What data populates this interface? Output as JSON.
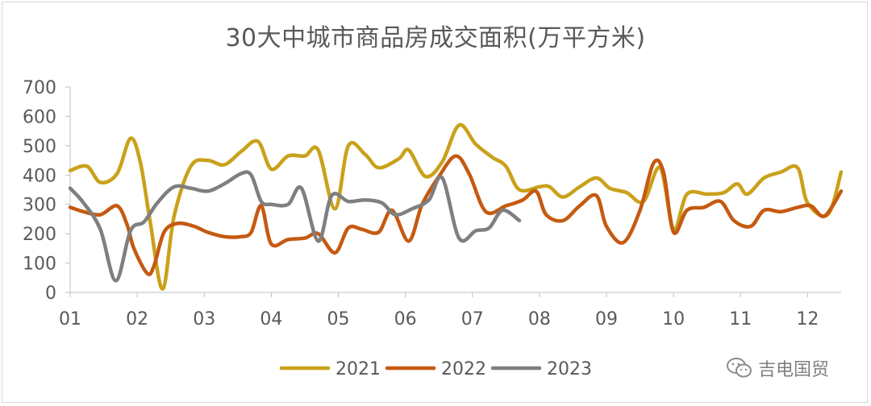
{
  "title": "30大中城市商品房成交面积(万平方米)",
  "watermark": "吉电国贸",
  "chart_data": {
    "type": "line",
    "title": "30大中城市商品房成交面积(万平方米)",
    "x_ticks": [
      "01",
      "02",
      "03",
      "04",
      "05",
      "06",
      "07",
      "08",
      "09",
      "10",
      "11",
      "12"
    ],
    "y_ticks": [
      0,
      100,
      200,
      300,
      400,
      500,
      600,
      700
    ],
    "xlim": [
      1,
      12.5
    ],
    "ylim": [
      0,
      700
    ],
    "grid": false,
    "legend_position": "bottom",
    "series": [
      {
        "name": "2021",
        "color": "#c9a11a",
        "points": [
          [
            1.0,
            415
          ],
          [
            1.25,
            430
          ],
          [
            1.45,
            375
          ],
          [
            1.7,
            405
          ],
          [
            1.9,
            525
          ],
          [
            2.05,
            440
          ],
          [
            2.2,
            230
          ],
          [
            2.38,
            12
          ],
          [
            2.55,
            260
          ],
          [
            2.8,
            430
          ],
          [
            3.05,
            450
          ],
          [
            3.3,
            435
          ],
          [
            3.55,
            480
          ],
          [
            3.8,
            515
          ],
          [
            4.0,
            420
          ],
          [
            4.25,
            465
          ],
          [
            4.5,
            465
          ],
          [
            4.7,
            485
          ],
          [
            4.95,
            285
          ],
          [
            5.15,
            500
          ],
          [
            5.4,
            470
          ],
          [
            5.6,
            425
          ],
          [
            5.9,
            455
          ],
          [
            6.05,
            485
          ],
          [
            6.3,
            395
          ],
          [
            6.55,
            445
          ],
          [
            6.8,
            570
          ],
          [
            7.05,
            505
          ],
          [
            7.3,
            460
          ],
          [
            7.5,
            430
          ],
          [
            7.7,
            350
          ],
          [
            8.0,
            360
          ],
          [
            8.15,
            360
          ],
          [
            8.35,
            325
          ],
          [
            8.6,
            360
          ],
          [
            8.85,
            390
          ],
          [
            9.05,
            355
          ],
          [
            9.3,
            340
          ],
          [
            9.55,
            310
          ],
          [
            9.8,
            425
          ],
          [
            10.0,
            215
          ],
          [
            10.2,
            335
          ],
          [
            10.5,
            335
          ],
          [
            10.75,
            340
          ],
          [
            10.95,
            370
          ],
          [
            11.1,
            335
          ],
          [
            11.35,
            390
          ],
          [
            11.6,
            410
          ],
          [
            11.85,
            425
          ],
          [
            12.0,
            305
          ],
          [
            12.3,
            265
          ],
          [
            12.5,
            410
          ]
        ]
      },
      {
        "name": "2022",
        "color": "#c55a11",
        "points": [
          [
            1.0,
            290
          ],
          [
            1.2,
            275
          ],
          [
            1.45,
            265
          ],
          [
            1.7,
            295
          ],
          [
            1.85,
            230
          ],
          [
            1.95,
            150
          ],
          [
            2.15,
            65
          ],
          [
            2.25,
            90
          ],
          [
            2.4,
            205
          ],
          [
            2.6,
            235
          ],
          [
            2.85,
            225
          ],
          [
            3.05,
            205
          ],
          [
            3.3,
            190
          ],
          [
            3.55,
            190
          ],
          [
            3.7,
            205
          ],
          [
            3.85,
            295
          ],
          [
            4.0,
            165
          ],
          [
            4.25,
            180
          ],
          [
            4.5,
            185
          ],
          [
            4.7,
            200
          ],
          [
            4.95,
            135
          ],
          [
            5.15,
            220
          ],
          [
            5.35,
            215
          ],
          [
            5.6,
            205
          ],
          [
            5.8,
            280
          ],
          [
            6.05,
            175
          ],
          [
            6.25,
            300
          ],
          [
            6.5,
            395
          ],
          [
            6.75,
            465
          ],
          [
            6.95,
            405
          ],
          [
            7.2,
            275
          ],
          [
            7.5,
            295
          ],
          [
            7.75,
            315
          ],
          [
            7.95,
            345
          ],
          [
            8.1,
            265
          ],
          [
            8.35,
            245
          ],
          [
            8.6,
            295
          ],
          [
            8.85,
            330
          ],
          [
            9.0,
            225
          ],
          [
            9.25,
            170
          ],
          [
            9.5,
            280
          ],
          [
            9.7,
            440
          ],
          [
            9.85,
            410
          ],
          [
            10.0,
            205
          ],
          [
            10.2,
            280
          ],
          [
            10.45,
            290
          ],
          [
            10.7,
            310
          ],
          [
            10.9,
            245
          ],
          [
            11.15,
            225
          ],
          [
            11.35,
            280
          ],
          [
            11.6,
            275
          ],
          [
            11.85,
            290
          ],
          [
            12.05,
            295
          ],
          [
            12.25,
            260
          ],
          [
            12.5,
            345
          ]
        ]
      },
      {
        "name": "2023",
        "color": "#7f7f7f",
        "points": [
          [
            1.0,
            355
          ],
          [
            1.2,
            305
          ],
          [
            1.45,
            215
          ],
          [
            1.68,
            40
          ],
          [
            1.9,
            210
          ],
          [
            2.1,
            240
          ],
          [
            2.3,
            305
          ],
          [
            2.55,
            360
          ],
          [
            2.8,
            355
          ],
          [
            3.05,
            345
          ],
          [
            3.3,
            370
          ],
          [
            3.55,
            405
          ],
          [
            3.7,
            400
          ],
          [
            3.85,
            310
          ],
          [
            4.0,
            300
          ],
          [
            4.25,
            300
          ],
          [
            4.45,
            355
          ],
          [
            4.7,
            175
          ],
          [
            4.9,
            330
          ],
          [
            5.15,
            310
          ],
          [
            5.4,
            315
          ],
          [
            5.65,
            305
          ],
          [
            5.85,
            265
          ],
          [
            6.1,
            285
          ],
          [
            6.35,
            315
          ],
          [
            6.55,
            390
          ],
          [
            6.8,
            185
          ],
          [
            7.05,
            210
          ],
          [
            7.25,
            220
          ],
          [
            7.45,
            280
          ],
          [
            7.7,
            245
          ]
        ]
      }
    ]
  }
}
